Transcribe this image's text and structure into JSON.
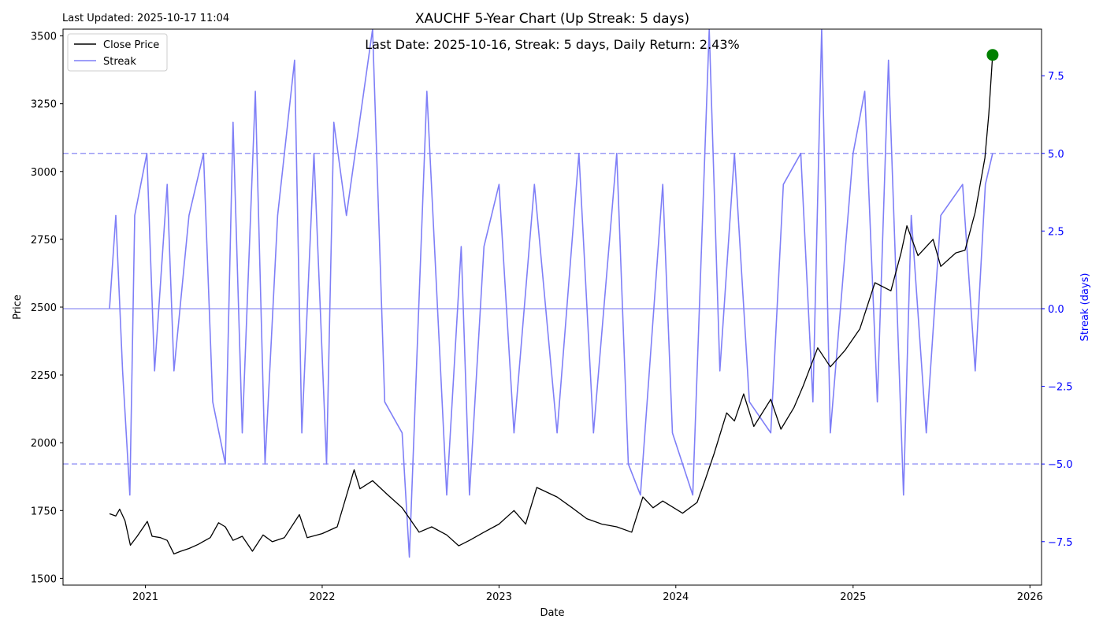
{
  "chart_data": {
    "type": "line",
    "title": "XAUCHF 5-Year Chart (Up Streak: 5 days)",
    "subtitle": "Last Date: 2025-10-16, Streak: 5 days, Daily Return: 2.43%",
    "updated": "Last Updated: 2025-10-17 11:04",
    "xlabel": "Date",
    "ylabel": "Price",
    "y2label": "Streak (days)",
    "xlim": [
      "2020-07-15",
      "2026-01-25"
    ],
    "ylim": [
      1475,
      3525
    ],
    "y2lim": [
      -8.9,
      9.0
    ],
    "x_ticks": [
      "2021",
      "2022",
      "2023",
      "2024",
      "2025",
      "2026"
    ],
    "y_ticks": [
      "1500",
      "1750",
      "2000",
      "2250",
      "2500",
      "2750",
      "3000",
      "3250",
      "3500"
    ],
    "y2_ticks": [
      "−7.5",
      "−5.0",
      "−2.5",
      "0.0",
      "2.5",
      "5.0",
      "7.5"
    ],
    "legend": {
      "position": "upper-left",
      "items": [
        "Close Price",
        "Streak"
      ]
    },
    "grid": false,
    "reference_lines": [
      {
        "axis": "y2",
        "value": 5,
        "style": "dashed"
      },
      {
        "axis": "y2",
        "value": -5,
        "style": "dashed"
      },
      {
        "axis": "y2",
        "value": 0,
        "style": "solid"
      }
    ],
    "colors": {
      "price": "#000000",
      "streak": "#7f7ff7",
      "ref": "#9999f5",
      "marker": "#008000",
      "y2axis": "#0000ff"
    },
    "series": [
      {
        "name": "Close Price",
        "axis": "y",
        "points": [
          [
            "2020-10-19",
            1738
          ],
          [
            "2020-11-01",
            1730
          ],
          [
            "2020-11-09",
            1755
          ],
          [
            "2020-11-20",
            1712
          ],
          [
            "2020-12-01",
            1622
          ],
          [
            "2020-12-15",
            1655
          ],
          [
            "2021-01-05",
            1710
          ],
          [
            "2021-01-15",
            1655
          ],
          [
            "2021-02-01",
            1650
          ],
          [
            "2021-02-15",
            1640
          ],
          [
            "2021-03-01",
            1590
          ],
          [
            "2021-03-15",
            1600
          ],
          [
            "2021-04-01",
            1610
          ],
          [
            "2021-04-20",
            1625
          ],
          [
            "2021-05-15",
            1650
          ],
          [
            "2021-06-01",
            1705
          ],
          [
            "2021-06-15",
            1690
          ],
          [
            "2021-07-01",
            1640
          ],
          [
            "2021-07-20",
            1655
          ],
          [
            "2021-08-10",
            1600
          ],
          [
            "2021-09-01",
            1660
          ],
          [
            "2021-09-20",
            1635
          ],
          [
            "2021-10-15",
            1650
          ],
          [
            "2021-11-15",
            1735
          ],
          [
            "2021-12-01",
            1650
          ],
          [
            "2022-01-01",
            1665
          ],
          [
            "2022-02-01",
            1690
          ],
          [
            "2022-03-08",
            1900
          ],
          [
            "2022-03-20",
            1830
          ],
          [
            "2022-04-15",
            1860
          ],
          [
            "2022-05-15",
            1810
          ],
          [
            "2022-06-15",
            1760
          ],
          [
            "2022-07-20",
            1670
          ],
          [
            "2022-08-15",
            1690
          ],
          [
            "2022-09-15",
            1660
          ],
          [
            "2022-10-10",
            1620
          ],
          [
            "2022-11-01",
            1640
          ],
          [
            "2022-12-01",
            1670
          ],
          [
            "2023-01-01",
            1700
          ],
          [
            "2023-02-01",
            1750
          ],
          [
            "2023-02-25",
            1700
          ],
          [
            "2023-03-20",
            1835
          ],
          [
            "2023-05-01",
            1800
          ],
          [
            "2023-06-01",
            1760
          ],
          [
            "2023-07-01",
            1720
          ],
          [
            "2023-08-01",
            1700
          ],
          [
            "2023-09-01",
            1690
          ],
          [
            "2023-10-02",
            1670
          ],
          [
            "2023-10-25",
            1800
          ],
          [
            "2023-11-15",
            1760
          ],
          [
            "2023-12-05",
            1785
          ],
          [
            "2024-01-15",
            1740
          ],
          [
            "2024-02-14",
            1780
          ],
          [
            "2024-03-01",
            1860
          ],
          [
            "2024-03-20",
            1960
          ],
          [
            "2024-04-15",
            2110
          ],
          [
            "2024-05-01",
            2080
          ],
          [
            "2024-05-20",
            2180
          ],
          [
            "2024-06-10",
            2060
          ],
          [
            "2024-07-15",
            2160
          ],
          [
            "2024-08-05",
            2050
          ],
          [
            "2024-09-01",
            2130
          ],
          [
            "2024-09-20",
            2210
          ],
          [
            "2024-10-20",
            2350
          ],
          [
            "2024-11-15",
            2280
          ],
          [
            "2024-12-15",
            2340
          ],
          [
            "2025-01-15",
            2420
          ],
          [
            "2025-02-15",
            2590
          ],
          [
            "2025-03-20",
            2560
          ],
          [
            "2025-04-10",
            2700
          ],
          [
            "2025-04-22",
            2800
          ],
          [
            "2025-05-15",
            2690
          ],
          [
            "2025-06-15",
            2750
          ],
          [
            "2025-07-01",
            2650
          ],
          [
            "2025-08-01",
            2700
          ],
          [
            "2025-08-20",
            2710
          ],
          [
            "2025-09-10",
            2850
          ],
          [
            "2025-09-30",
            3050
          ],
          [
            "2025-10-08",
            3210
          ],
          [
            "2025-10-16",
            3430
          ]
        ]
      },
      {
        "name": "Streak",
        "axis": "y2",
        "points": [
          [
            "2020-10-19",
            0
          ],
          [
            "2020-11-01",
            3
          ],
          [
            "2020-11-15",
            -2
          ],
          [
            "2020-11-30",
            -6
          ],
          [
            "2020-12-10",
            3
          ],
          [
            "2021-01-04",
            5
          ],
          [
            "2021-01-20",
            -2
          ],
          [
            "2021-02-15",
            4
          ],
          [
            "2021-03-01",
            -2
          ],
          [
            "2021-04-01",
            3
          ],
          [
            "2021-05-01",
            5
          ],
          [
            "2021-05-20",
            -3
          ],
          [
            "2021-06-15",
            -5
          ],
          [
            "2021-07-01",
            6
          ],
          [
            "2021-07-20",
            -4
          ],
          [
            "2021-08-16",
            7
          ],
          [
            "2021-09-05",
            -5
          ],
          [
            "2021-10-01",
            3
          ],
          [
            "2021-11-05",
            8
          ],
          [
            "2021-11-20",
            -4
          ],
          [
            "2021-12-15",
            5
          ],
          [
            "2022-01-10",
            -5
          ],
          [
            "2022-01-25",
            6
          ],
          [
            "2022-02-20",
            3
          ],
          [
            "2022-04-15",
            9
          ],
          [
            "2022-05-10",
            -3
          ],
          [
            "2022-06-15",
            -4
          ],
          [
            "2022-06-30",
            -8
          ],
          [
            "2022-08-05",
            7
          ],
          [
            "2022-09-15",
            -6
          ],
          [
            "2022-10-15",
            2
          ],
          [
            "2022-11-01",
            -6
          ],
          [
            "2022-12-01",
            2
          ],
          [
            "2023-01-01",
            4
          ],
          [
            "2023-02-01",
            -4
          ],
          [
            "2023-03-15",
            4
          ],
          [
            "2023-05-01",
            -4
          ],
          [
            "2023-06-15",
            5
          ],
          [
            "2023-07-15",
            -4
          ],
          [
            "2023-09-01",
            5
          ],
          [
            "2023-09-25",
            -5
          ],
          [
            "2023-10-20",
            -6
          ],
          [
            "2023-12-05",
            4
          ],
          [
            "2023-12-25",
            -4
          ],
          [
            "2024-02-05",
            -6
          ],
          [
            "2024-03-10",
            9
          ],
          [
            "2024-04-01",
            -2
          ],
          [
            "2024-05-01",
            5
          ],
          [
            "2024-06-01",
            -3
          ],
          [
            "2024-07-15",
            -4
          ],
          [
            "2024-08-10",
            4
          ],
          [
            "2024-09-15",
            5
          ],
          [
            "2024-10-10",
            -3
          ],
          [
            "2024-10-28",
            9
          ],
          [
            "2024-11-15",
            -4
          ],
          [
            "2025-01-01",
            5
          ],
          [
            "2025-01-25",
            7
          ],
          [
            "2025-02-20",
            -3
          ],
          [
            "2025-03-15",
            8
          ],
          [
            "2025-04-15",
            -6
          ],
          [
            "2025-05-01",
            3
          ],
          [
            "2025-06-01",
            -4
          ],
          [
            "2025-07-01",
            3
          ],
          [
            "2025-08-15",
            4
          ],
          [
            "2025-09-10",
            -2
          ],
          [
            "2025-10-01",
            4
          ],
          [
            "2025-10-16",
            5
          ]
        ]
      }
    ],
    "last_point": {
      "date": "2025-10-16",
      "value": 3430
    }
  }
}
